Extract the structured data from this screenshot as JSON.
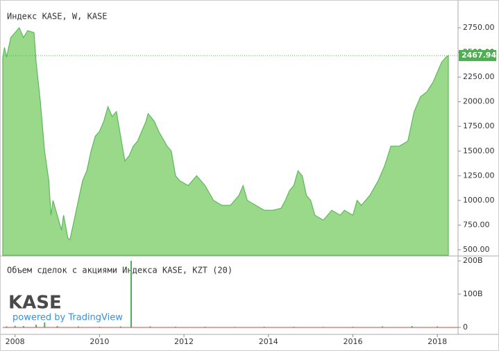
{
  "chart_data": [
    {
      "type": "area",
      "title": "Индекс KASE, W, KASE",
      "color": "#5cb85c",
      "fill": "#9bd98a",
      "xlim": [
        2007.71,
        2018.49
      ],
      "ylim": [
        444,
        3003
      ],
      "yticks": [
        {
          "value": 500,
          "label": "500.00"
        },
        {
          "value": 750,
          "label": "750.00"
        },
        {
          "value": 1000,
          "label": "1000.00"
        },
        {
          "value": 1250,
          "label": "1250.00"
        },
        {
          "value": 1500,
          "label": "1500.00"
        },
        {
          "value": 1750,
          "label": "1750.00"
        },
        {
          "value": 2000,
          "label": "2000.00"
        },
        {
          "value": 2250,
          "label": "2250.00"
        },
        {
          "value": 2500,
          "label": "2500.00"
        },
        {
          "value": 2750,
          "label": "2750.00"
        }
      ],
      "last_value": 2467.94,
      "x": [
        2007.71,
        2007.75,
        2007.8,
        2007.9,
        2008.0,
        2008.1,
        2008.2,
        2008.3,
        2008.45,
        2008.5,
        2008.6,
        2008.7,
        2008.8,
        2008.85,
        2008.9,
        2009.0,
        2009.1,
        2009.15,
        2009.25,
        2009.3,
        2009.4,
        2009.5,
        2009.6,
        2009.7,
        2009.8,
        2009.9,
        2010.0,
        2010.1,
        2010.2,
        2010.3,
        2010.4,
        2010.5,
        2010.6,
        2010.7,
        2010.8,
        2010.9,
        2011.0,
        2011.1,
        2011.15,
        2011.3,
        2011.4,
        2011.6,
        2011.7,
        2011.8,
        2011.9,
        2012.1,
        2012.3,
        2012.5,
        2012.7,
        2012.9,
        2013.1,
        2013.3,
        2013.4,
        2013.5,
        2013.7,
        2013.9,
        2014.1,
        2014.3,
        2014.4,
        2014.5,
        2014.6,
        2014.7,
        2014.8,
        2014.9,
        2015.0,
        2015.1,
        2015.3,
        2015.5,
        2015.7,
        2015.8,
        2016.0,
        2016.1,
        2016.2,
        2016.4,
        2016.6,
        2016.75,
        2016.9,
        2017.1,
        2017.3,
        2017.45,
        2017.6,
        2017.75,
        2017.9,
        2018.0,
        2018.1,
        2018.2,
        2018.26
      ],
      "values": [
        2450,
        2550,
        2450,
        2650,
        2700,
        2750,
        2650,
        2720,
        2700,
        2400,
        2000,
        1500,
        1200,
        850,
        1000,
        850,
        700,
        850,
        620,
        600,
        800,
        1000,
        1200,
        1300,
        1500,
        1650,
        1700,
        1800,
        1950,
        1850,
        1900,
        1650,
        1400,
        1450,
        1550,
        1600,
        1700,
        1800,
        1880,
        1800,
        1700,
        1550,
        1500,
        1250,
        1200,
        1150,
        1250,
        1150,
        1000,
        950,
        950,
        1050,
        1150,
        1000,
        950,
        900,
        900,
        920,
        1000,
        1100,
        1150,
        1300,
        1250,
        1050,
        1000,
        850,
        800,
        900,
        850,
        900,
        850,
        1000,
        950,
        1050,
        1200,
        1350,
        1550,
        1550,
        1600,
        1900,
        2050,
        2100,
        2200,
        2300,
        2400,
        2450,
        2467.94
      ]
    },
    {
      "type": "bar",
      "title": "Объем сделок с акциями Индекса KASE, KZT (20)",
      "color": "#4caf50",
      "xlim": [
        2007.71,
        2018.49
      ],
      "ylim": [
        -12500000000,
        212500000000
      ],
      "yticks": [
        0,
        {
          "value": 100000000000,
          "label": "100B"
        },
        {
          "value": 200000000000,
          "label": "200B"
        }
      ],
      "xticks": [
        2008,
        2010,
        2012,
        2014,
        2016,
        2018
      ],
      "logo": "KASE",
      "credit": "powered by TradingView",
      "x": [
        2007.8,
        2008.0,
        2008.2,
        2008.5,
        2008.7,
        2009.0,
        2009.5,
        2010.0,
        2010.5,
        2010.75,
        2011.2,
        2011.8,
        2012.5,
        2013.2,
        2013.9,
        2014.6,
        2015.3,
        2016.0,
        2016.7,
        2017.4,
        2018.0
      ],
      "values": [
        3000000000,
        5000000000,
        4000000000,
        8000000000,
        15000000000,
        4000000000,
        3000000000,
        2000000000,
        3000000000,
        200000000000,
        3000000000,
        2000000000,
        2000000000,
        1500000000,
        2000000000,
        2000000000,
        1500000000,
        2000000000,
        3000000000,
        4000000000,
        3000000000
      ]
    }
  ]
}
